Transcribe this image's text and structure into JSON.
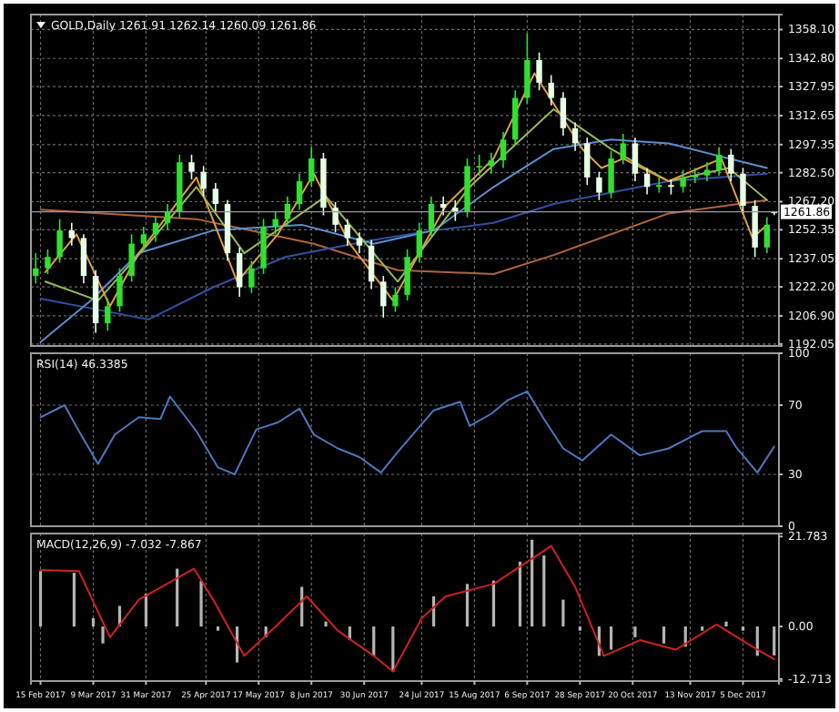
{
  "chart_data": [
    {
      "type": "candlestick",
      "title": "GOLD,Daily 1261.91 1262.14 1260.09 1261.86",
      "tick_labels": "y",
      "grid": true,
      "xlim": [
        "2017-02-11",
        "2017-12-20"
      ],
      "ylim": [
        1191,
        1366
      ],
      "xticks": [
        {
          "value": "2017-02-15",
          "label": null
        },
        {
          "value": "2017-03-09",
          "label": null
        },
        {
          "value": "2017-03-31",
          "label": null
        },
        {
          "value": "2017-04-25",
          "label": null
        },
        {
          "value": "2017-05-17",
          "label": null
        },
        {
          "value": "2017-06-08",
          "label": null
        },
        {
          "value": "2017-06-30",
          "label": null
        },
        {
          "value": "2017-07-24",
          "label": null
        },
        {
          "value": "2017-08-15",
          "label": null
        },
        {
          "value": "2017-09-06",
          "label": null
        },
        {
          "value": "2017-09-28",
          "label": null
        },
        {
          "value": "2017-10-20",
          "label": null
        },
        {
          "value": "2017-11-13",
          "label": null
        },
        {
          "value": "2017-12-05",
          "label": null
        }
      ],
      "yticks": [
        {
          "value": 1192.05,
          "label": "1192.05"
        },
        {
          "value": 1206.9,
          "label": "1206.90"
        },
        {
          "value": 1222.2,
          "label": "1222.20"
        },
        {
          "value": 1237.05,
          "label": "1237.05"
        },
        {
          "value": 1252.35,
          "label": "1252.35"
        },
        {
          "value": 1267.2,
          "label": "1267.20"
        },
        {
          "value": 1282.5,
          "label": "1282.50"
        },
        {
          "value": 1297.35,
          "label": "1297.35"
        },
        {
          "value": 1312.65,
          "label": "1312.65"
        },
        {
          "value": 1327.95,
          "label": "1327.95"
        },
        {
          "value": 1342.8,
          "label": "1342.80"
        },
        {
          "value": 1358.1,
          "label": "1358.10"
        }
      ],
      "x": [
        "2017-02-13",
        "2017-02-18",
        "2017-02-23",
        "2017-02-28",
        "2017-03-05",
        "2017-03-10",
        "2017-03-15",
        "2017-03-20",
        "2017-03-25",
        "2017-03-30",
        "2017-04-04",
        "2017-04-09",
        "2017-04-14",
        "2017-04-19",
        "2017-04-24",
        "2017-04-29",
        "2017-05-04",
        "2017-05-09",
        "2017-05-14",
        "2017-05-19",
        "2017-05-24",
        "2017-05-29",
        "2017-06-03",
        "2017-06-08",
        "2017-06-13",
        "2017-06-18",
        "2017-06-23",
        "2017-06-28",
        "2017-07-03",
        "2017-07-08",
        "2017-07-13",
        "2017-07-18",
        "2017-07-23",
        "2017-07-28",
        "2017-08-02",
        "2017-08-07",
        "2017-08-12",
        "2017-08-17",
        "2017-08-22",
        "2017-08-27",
        "2017-09-01",
        "2017-09-06",
        "2017-09-11",
        "2017-09-16",
        "2017-09-21",
        "2017-09-26",
        "2017-10-01",
        "2017-10-06",
        "2017-10-11",
        "2017-10-16",
        "2017-10-21",
        "2017-10-26",
        "2017-10-31",
        "2017-11-05",
        "2017-11-10",
        "2017-11-15",
        "2017-11-20",
        "2017-11-25",
        "2017-11-30",
        "2017-12-05",
        "2017-12-10",
        "2017-12-15",
        "2017-12-18"
      ],
      "ohlc": [
        [
          1228,
          1240,
          1224,
          1232
        ],
        [
          1232,
          1242,
          1229,
          1238
        ],
        [
          1238,
          1258,
          1235,
          1252
        ],
        [
          1252,
          1256,
          1244,
          1248
        ],
        [
          1248,
          1250,
          1224,
          1228
        ],
        [
          1228,
          1231,
          1198,
          1203
        ],
        [
          1203,
          1216,
          1199,
          1212
        ],
        [
          1212,
          1232,
          1209,
          1228
        ],
        [
          1228,
          1250,
          1225,
          1245
        ],
        [
          1245,
          1254,
          1241,
          1250
        ],
        [
          1250,
          1259,
          1246,
          1256
        ],
        [
          1256,
          1266,
          1252,
          1262
        ],
        [
          1262,
          1292,
          1259,
          1288
        ],
        [
          1288,
          1292,
          1279,
          1283
        ],
        [
          1283,
          1286,
          1270,
          1274
        ],
        [
          1274,
          1277,
          1262,
          1266
        ],
        [
          1266,
          1268,
          1236,
          1240
        ],
        [
          1240,
          1243,
          1217,
          1222
        ],
        [
          1222,
          1236,
          1219,
          1232
        ],
        [
          1232,
          1258,
          1229,
          1254
        ],
        [
          1254,
          1262,
          1250,
          1258
        ],
        [
          1258,
          1270,
          1255,
          1266
        ],
        [
          1266,
          1282,
          1263,
          1278
        ],
        [
          1278,
          1296,
          1275,
          1290
        ],
        [
          1290,
          1293,
          1260,
          1264
        ],
        [
          1264,
          1267,
          1251,
          1255
        ],
        [
          1255,
          1258,
          1244,
          1248
        ],
        [
          1248,
          1251,
          1240,
          1244
        ],
        [
          1244,
          1247,
          1221,
          1225
        ],
        [
          1225,
          1228,
          1206,
          1212
        ],
        [
          1212,
          1222,
          1209,
          1218
        ],
        [
          1218,
          1242,
          1215,
          1238
        ],
        [
          1238,
          1256,
          1235,
          1252
        ],
        [
          1252,
          1270,
          1249,
          1266
        ],
        [
          1266,
          1270,
          1260,
          1264
        ],
        [
          1264,
          1268,
          1257,
          1262
        ],
        [
          1262,
          1290,
          1259,
          1286
        ],
        [
          1286,
          1292,
          1281,
          1286
        ],
        [
          1286,
          1293,
          1282,
          1289
        ],
        [
          1289,
          1304,
          1285,
          1300
        ],
        [
          1300,
          1326,
          1297,
          1322
        ],
        [
          1322,
          1356,
          1319,
          1342
        ],
        [
          1342,
          1346,
          1326,
          1330
        ],
        [
          1330,
          1334,
          1318,
          1322
        ],
        [
          1322,
          1325,
          1302,
          1306
        ],
        [
          1306,
          1309,
          1294,
          1298
        ],
        [
          1298,
          1301,
          1276,
          1280
        ],
        [
          1280,
          1283,
          1268,
          1272
        ],
        [
          1272,
          1294,
          1269,
          1290
        ],
        [
          1290,
          1303,
          1287,
          1298
        ],
        [
          1298,
          1301,
          1278,
          1282
        ],
        [
          1282,
          1285,
          1271,
          1275
        ],
        [
          1275,
          1280,
          1272,
          1276
        ],
        [
          1276,
          1279,
          1271,
          1275
        ],
        [
          1275,
          1284,
          1272,
          1280
        ],
        [
          1280,
          1285,
          1277,
          1281
        ],
        [
          1281,
          1288,
          1278,
          1284
        ],
        [
          1284,
          1296,
          1281,
          1292
        ],
        [
          1292,
          1295,
          1278,
          1282
        ],
        [
          1282,
          1285,
          1261,
          1265
        ],
        [
          1265,
          1268,
          1238,
          1243
        ],
        [
          1243,
          1259,
          1240,
          1255
        ],
        [
          1261.91,
          1262.14,
          1260.09,
          1261.86
        ]
      ],
      "colors": [
        "#33dd33",
        "#33dd33",
        "#33dd33",
        "#e6ffe6",
        "#e6ffe6",
        "#e6ffe6",
        "#33dd33",
        "#33dd33",
        "#33dd33",
        "#33dd33",
        "#33dd33",
        "#33dd33",
        "#33dd33",
        "#e6ffe6",
        "#e6ffe6",
        "#e6ffe6",
        "#e6ffe6",
        "#e6ffe6",
        "#33dd33",
        "#33dd33",
        "#33dd33",
        "#33dd33",
        "#33dd33",
        "#33dd33",
        "#e6ffe6",
        "#e6ffe6",
        "#e6ffe6",
        "#e6ffe6",
        "#e6ffe6",
        "#e6ffe6",
        "#33dd33",
        "#33dd33",
        "#33dd33",
        "#33dd33",
        "#e6ffe6",
        "#e6ffe6",
        "#33dd33",
        "#33dd33",
        "#33dd33",
        "#33dd33",
        "#33dd33",
        "#33dd33",
        "#e6ffe6",
        "#e6ffe6",
        "#e6ffe6",
        "#e6ffe6",
        "#e6ffe6",
        "#e6ffe6",
        "#33dd33",
        "#33dd33",
        "#e6ffe6",
        "#e6ffe6",
        "#33dd33",
        "#e6ffe6",
        "#33dd33",
        "#33dd33",
        "#33dd33",
        "#33dd33",
        "#e6ffe6",
        "#e6ffe6",
        "#e6ffe6",
        "#33dd33",
        "#e6ffe6"
      ],
      "series": [
        {
          "type": "line",
          "color": "#b0643c",
          "x": [
            "2017-02-15",
            "2017-04-21",
            "2017-06-09",
            "2017-07-14",
            "2017-08-23",
            "2017-09-17",
            "2017-10-11",
            "2017-11-04",
            "2017-12-15"
          ],
          "values": [
            1263,
            1258,
            1245,
            1231,
            1229,
            1239,
            1250,
            1261,
            1268
          ]
        },
        {
          "type": "line",
          "color": "#3050a0",
          "x": [
            "2017-02-15",
            "2017-04-01",
            "2017-04-28",
            "2017-05-28",
            "2017-07-04",
            "2017-07-29",
            "2017-08-23",
            "2017-09-17",
            "2017-10-11",
            "2017-11-04",
            "2017-12-15"
          ],
          "values": [
            1216,
            1205,
            1222,
            1238,
            1247,
            1252,
            1256,
            1266,
            1272,
            1278,
            1282
          ]
        },
        {
          "type": "line",
          "color": "#5a8fd0",
          "x": [
            "2017-02-15",
            "2017-03-08",
            "2017-03-28",
            "2017-04-28",
            "2017-06-04",
            "2017-07-04",
            "2017-07-29",
            "2017-08-23",
            "2017-09-17",
            "2017-10-11",
            "2017-11-04",
            "2017-11-29",
            "2017-12-15"
          ],
          "values": [
            1193,
            1215,
            1240,
            1252,
            1255,
            1245,
            1252,
            1275,
            1295,
            1300,
            1298,
            1290,
            1285
          ]
        },
        {
          "type": "line",
          "color": "#9ab858",
          "x": [
            "2017-02-17",
            "2017-03-11",
            "2017-04-01",
            "2017-04-21",
            "2017-05-11",
            "2017-05-28",
            "2017-06-14",
            "2017-07-14",
            "2017-08-13",
            "2017-09-17",
            "2017-10-11",
            "2017-11-04",
            "2017-11-29",
            "2017-12-15"
          ],
          "values": [
            1225,
            1215,
            1245,
            1275,
            1240,
            1255,
            1270,
            1225,
            1275,
            1316,
            1295,
            1278,
            1285,
            1268
          ]
        },
        {
          "type": "line",
          "color": "#e0a040",
          "x": [
            "2017-02-17",
            "2017-03-02",
            "2017-03-16",
            "2017-03-28",
            "2017-04-21",
            "2017-05-08",
            "2017-05-25",
            "2017-06-09",
            "2017-06-24",
            "2017-07-12",
            "2017-08-03",
            "2017-08-23",
            "2017-09-09",
            "2017-09-29",
            "2017-10-07",
            "2017-10-16",
            "2017-11-04",
            "2017-11-26",
            "2017-12-09",
            "2017-12-15"
          ],
          "values": [
            1230,
            1250,
            1212,
            1240,
            1280,
            1225,
            1250,
            1282,
            1245,
            1215,
            1265,
            1290,
            1335,
            1295,
            1285,
            1290,
            1278,
            1290,
            1248,
            1255
          ]
        }
      ],
      "ref_lines": [
        {
          "axis": "y",
          "value": 1261.86,
          "label": "1261.86",
          "color": "#9a9a9a"
        }
      ]
    },
    {
      "type": "line",
      "title": "RSI(14) 46.3385",
      "tick_labels": "y",
      "grid": true,
      "xlim": [
        "2017-02-11",
        "2017-12-20"
      ],
      "ylim": [
        0,
        100
      ],
      "yticks": [
        0,
        30,
        70,
        100
      ],
      "xticks": [
        {
          "value": "2017-02-15",
          "label": null
        },
        {
          "value": "2017-03-09",
          "label": null
        },
        {
          "value": "2017-03-31",
          "label": null
        },
        {
          "value": "2017-04-25",
          "label": null
        },
        {
          "value": "2017-05-17",
          "label": null
        },
        {
          "value": "2017-06-08",
          "label": null
        },
        {
          "value": "2017-06-30",
          "label": null
        },
        {
          "value": "2017-07-24",
          "label": null
        },
        {
          "value": "2017-08-15",
          "label": null
        },
        {
          "value": "2017-09-06",
          "label": null
        },
        {
          "value": "2017-09-28",
          "label": null
        },
        {
          "value": "2017-10-20",
          "label": null
        },
        {
          "value": "2017-11-13",
          "label": null
        },
        {
          "value": "2017-12-05",
          "label": null
        }
      ],
      "series": [
        {
          "color": "#4a78c0",
          "x": [
            "2017-02-15",
            "2017-02-25",
            "2017-03-03",
            "2017-03-11",
            "2017-03-18",
            "2017-03-28",
            "2017-04-06",
            "2017-04-10",
            "2017-04-21",
            "2017-04-30",
            "2017-05-07",
            "2017-05-16",
            "2017-05-25",
            "2017-06-03",
            "2017-06-09",
            "2017-06-19",
            "2017-06-28",
            "2017-07-07",
            "2017-07-14",
            "2017-07-29",
            "2017-08-09",
            "2017-08-13",
            "2017-08-22",
            "2017-08-29",
            "2017-09-06",
            "2017-09-13",
            "2017-09-21",
            "2017-09-29",
            "2017-10-11",
            "2017-10-23",
            "2017-11-04",
            "2017-11-18",
            "2017-11-28",
            "2017-12-02",
            "2017-12-11",
            "2017-12-18"
          ],
          "values": [
            63,
            70,
            55,
            36,
            53,
            63,
            62,
            75,
            55,
            34,
            30,
            56,
            60,
            68,
            53,
            45,
            40,
            31,
            43,
            67,
            72,
            58,
            65,
            73,
            78,
            62,
            45,
            38,
            53,
            41,
            45,
            55,
            55,
            46,
            31,
            46
          ]
        }
      ]
    },
    {
      "type": "bar",
      "title": "MACD(12,26,9) -7.032 -7.867",
      "grid": "x",
      "xlim": [
        "2017-02-11",
        "2017-12-20"
      ],
      "ylim": [
        -13.2,
        22.5
      ],
      "yticks": [
        {
          "value": -12.713,
          "label": "-12.713"
        },
        {
          "value": 0,
          "label": "0.00"
        },
        {
          "value": 21.783,
          "label": "21.783"
        }
      ],
      "xticks": [
        {
          "value": "2017-02-15",
          "label": "15 Feb 2017"
        },
        {
          "value": "2017-03-09",
          "label": "9 Mar 2017"
        },
        {
          "value": "2017-03-31",
          "label": "31 Mar 2017"
        },
        {
          "value": "2017-04-25",
          "label": "25 Apr 2017"
        },
        {
          "value": "2017-05-17",
          "label": "17 May 2017"
        },
        {
          "value": "2017-06-08",
          "label": "8 Jun 2017"
        },
        {
          "value": "2017-06-30",
          "label": "30 Jun 2017"
        },
        {
          "value": "2017-07-24",
          "label": "24 Jul 2017"
        },
        {
          "value": "2017-08-15",
          "label": "15 Aug 2017"
        },
        {
          "value": "2017-09-06",
          "label": "6 Sep 2017"
        },
        {
          "value": "2017-09-28",
          "label": "28 Sep 2017"
        },
        {
          "value": "2017-10-20",
          "label": "20 Oct 2017"
        },
        {
          "value": "2017-11-13",
          "label": "13 Nov 2017"
        },
        {
          "value": "2017-12-05",
          "label": "5 Dec 2017"
        }
      ],
      "series": [
        {
          "type": "bar",
          "color": "#b4b4b4",
          "x": [
            "2017-02-15",
            "2017-03-01",
            "2017-03-09",
            "2017-03-13",
            "2017-03-20",
            "2017-03-31",
            "2017-04-13",
            "2017-04-23",
            "2017-04-30",
            "2017-05-08",
            "2017-05-20",
            "2017-06-04",
            "2017-06-14",
            "2017-06-24",
            "2017-07-04",
            "2017-07-12",
            "2017-07-22",
            "2017-07-29",
            "2017-08-12",
            "2017-08-23",
            "2017-09-03",
            "2017-09-08",
            "2017-09-13",
            "2017-09-21",
            "2017-09-28",
            "2017-10-06",
            "2017-10-11",
            "2017-10-21",
            "2017-11-02",
            "2017-11-11",
            "2017-11-18",
            "2017-11-28",
            "2017-12-05",
            "2017-12-11",
            "2017-12-18"
          ],
          "values": [
            13.4,
            13,
            2,
            -4.1,
            5,
            8,
            14,
            11,
            -1,
            -8.7,
            -2.6,
            9.6,
            1.2,
            -3.3,
            -7.1,
            -10.9,
            null,
            7.3,
            10.3,
            11.1,
            15.7,
            21,
            17.2,
            6.5,
            -1,
            -7.1,
            -5.6,
            -2.6,
            -4.1,
            -4.9,
            -1,
            1.2,
            -1,
            -7.1,
            -7
          ]
        },
        {
          "type": "line",
          "color": "#d02020",
          "x": [
            "2017-02-15",
            "2017-03-03",
            "2017-03-16",
            "2017-03-28",
            "2017-04-20",
            "2017-04-28",
            "2017-05-11",
            "2017-05-25",
            "2017-06-06",
            "2017-06-19",
            "2017-07-04",
            "2017-07-12",
            "2017-07-24",
            "2017-08-03",
            "2017-08-23",
            "2017-09-16",
            "2017-09-26",
            "2017-10-08",
            "2017-10-23",
            "2017-11-07",
            "2017-11-24",
            "2017-12-09",
            "2017-12-18"
          ],
          "values": [
            13.7,
            13.4,
            -2.6,
            6.5,
            14,
            6.5,
            -7.1,
            0.5,
            7.3,
            -1,
            -7.1,
            -10.9,
            2,
            7.3,
            10.3,
            19.5,
            9.6,
            -7.1,
            -3.3,
            -5.6,
            0.5,
            -4.9,
            -7.9
          ]
        }
      ]
    }
  ]
}
